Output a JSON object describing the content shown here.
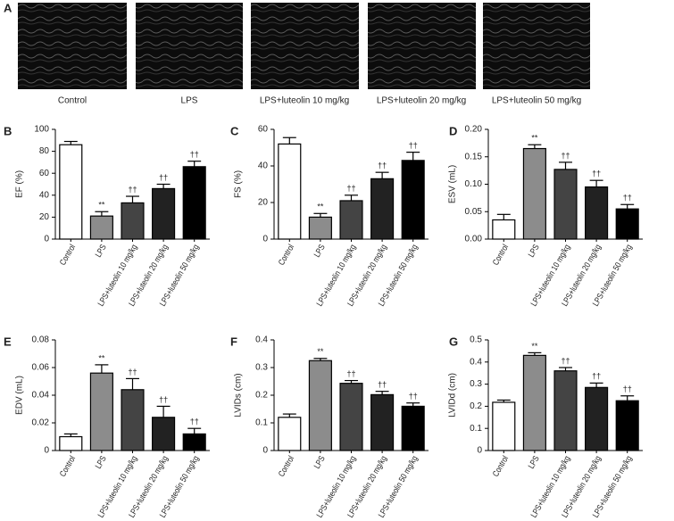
{
  "panel_a": {
    "label": "A",
    "captions": [
      "Control",
      "LPS",
      "LPS+luteolin 10 mg/kg",
      "LPS+luteolin 20 mg/kg",
      "LPS+luteolin 50 mg/kg"
    ]
  },
  "chart_data": [
    {
      "type": "bar",
      "panel": "B",
      "ylabel": "EF (%)",
      "categories": [
        "Control",
        "LPS",
        "LPS+luteolin 10 mg/kg",
        "LPS+luteolin 20 mg/kg",
        "LPS+luteolin 50 mg/kg"
      ],
      "values": [
        86,
        21,
        33,
        46,
        66
      ],
      "errors": [
        3,
        4,
        6,
        4,
        5
      ],
      "annotations": [
        null,
        "**",
        "††",
        "††",
        "††"
      ],
      "colors": [
        "#ffffff",
        "#8c8c8c",
        "#444444",
        "#222222",
        "#000000"
      ],
      "ylim": [
        0,
        100
      ],
      "yticks": [
        0,
        20,
        40,
        60,
        80,
        100
      ]
    },
    {
      "type": "bar",
      "panel": "C",
      "ylabel": "FS (%)",
      "categories": [
        "Control",
        "LPS",
        "LPS+luteolin 10 mg/kg",
        "LPS+luteolin 20 mg/kg",
        "LPS+luteolin 50 mg/kg"
      ],
      "values": [
        52,
        12,
        21,
        33,
        43
      ],
      "errors": [
        3.5,
        2,
        3,
        3.5,
        4.5
      ],
      "annotations": [
        null,
        "**",
        "††",
        "††",
        "††"
      ],
      "colors": [
        "#ffffff",
        "#8c8c8c",
        "#444444",
        "#222222",
        "#000000"
      ],
      "ylim": [
        0,
        60
      ],
      "yticks": [
        0,
        20,
        40,
        60
      ]
    },
    {
      "type": "bar",
      "panel": "D",
      "ylabel": "ESV (mL)",
      "categories": [
        "Control",
        "LPS",
        "LPS+luteolin 10 mg/kg",
        "LPS+luteolin 20 mg/kg",
        "LPS+luteolin 50 mg/kg"
      ],
      "values": [
        0.035,
        0.165,
        0.127,
        0.095,
        0.055
      ],
      "errors": [
        0.01,
        0.007,
        0.013,
        0.012,
        0.008
      ],
      "annotations": [
        null,
        "**",
        "††",
        "††",
        "††"
      ],
      "colors": [
        "#ffffff",
        "#8c8c8c",
        "#444444",
        "#222222",
        "#000000"
      ],
      "ylim": [
        0,
        0.2
      ],
      "yticks": [
        {
          "value": 0,
          "label": "0.00"
        },
        0.05,
        {
          "value": 0.1,
          "label": "0.10"
        },
        0.15,
        {
          "value": 0.2,
          "label": "0.20"
        }
      ]
    },
    {
      "type": "bar",
      "panel": "E",
      "ylabel": "EDV (mL)",
      "categories": [
        "Control",
        "LPS",
        "LPS+luteolin 10 mg/kg",
        "LPS+luteolin 20 mg/kg",
        "LPS+luteolin 50 mg/kg"
      ],
      "values": [
        0.01,
        0.056,
        0.044,
        0.024,
        0.012
      ],
      "errors": [
        0.002,
        0.006,
        0.008,
        0.008,
        0.004
      ],
      "annotations": [
        null,
        "**",
        "††",
        "††",
        "††"
      ],
      "colors": [
        "#ffffff",
        "#8c8c8c",
        "#444444",
        "#222222",
        "#000000"
      ],
      "ylim": [
        0,
        0.08
      ],
      "yticks": [
        0,
        0.02,
        0.04,
        0.06,
        0.08
      ]
    },
    {
      "type": "bar",
      "panel": "F",
      "ylabel": "LVIDs (cm)",
      "categories": [
        "Control",
        "LPS",
        "LPS+luteolin 10 mg/kg",
        "LPS+luteolin 20 mg/kg",
        "LPS+luteolin 50 mg/kg"
      ],
      "values": [
        0.12,
        0.325,
        0.243,
        0.202,
        0.16
      ],
      "errors": [
        0.012,
        0.008,
        0.01,
        0.012,
        0.012
      ],
      "annotations": [
        null,
        "**",
        "††",
        "††",
        "††"
      ],
      "colors": [
        "#ffffff",
        "#8c8c8c",
        "#444444",
        "#222222",
        "#000000"
      ],
      "ylim": [
        0,
        0.4
      ],
      "yticks": [
        0,
        0.1,
        0.2,
        0.3,
        0.4
      ]
    },
    {
      "type": "bar",
      "panel": "G",
      "ylabel": "LVIDd (cm)",
      "categories": [
        "Control",
        "LPS",
        "LPS+luteolin 10 mg/kg",
        "LPS+luteolin 20 mg/kg",
        "LPS+luteolin 50 mg/kg"
      ],
      "values": [
        0.218,
        0.43,
        0.36,
        0.285,
        0.225
      ],
      "errors": [
        0.01,
        0.012,
        0.015,
        0.02,
        0.022
      ],
      "annotations": [
        null,
        "**",
        "††",
        "††",
        "††"
      ],
      "colors": [
        "#ffffff",
        "#8c8c8c",
        "#444444",
        "#222222",
        "#000000"
      ],
      "ylim": [
        0,
        0.5
      ],
      "yticks": [
        0,
        0.1,
        0.2,
        0.3,
        0.4,
        0.5
      ]
    }
  ]
}
